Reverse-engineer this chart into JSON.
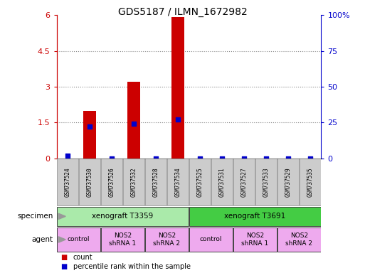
{
  "title": "GDS5187 / ILMN_1672982",
  "samples": [
    "GSM737524",
    "GSM737530",
    "GSM737526",
    "GSM737532",
    "GSM737528",
    "GSM737534",
    "GSM737525",
    "GSM737531",
    "GSM737527",
    "GSM737533",
    "GSM737529",
    "GSM737535"
  ],
  "count_values": [
    0.0,
    2.0,
    0.0,
    3.2,
    0.0,
    5.9,
    0.0,
    0.0,
    0.0,
    0.0,
    0.0,
    0.0
  ],
  "percentile_values": [
    2.0,
    22.0,
    0.0,
    24.0,
    0.0,
    27.0,
    0.0,
    0.0,
    0.0,
    0.0,
    0.0,
    0.0
  ],
  "bar_color": "#cc0000",
  "dot_color": "#0000cc",
  "ylim_left": [
    0,
    6
  ],
  "ylim_right": [
    0,
    100
  ],
  "yticks_left": [
    0,
    1.5,
    3,
    4.5,
    6
  ],
  "yticks_right": [
    0,
    25,
    50,
    75,
    100
  ],
  "ytick_labels_left": [
    "0",
    "1.5",
    "3",
    "4.5",
    "6"
  ],
  "ytick_labels_right": [
    "0",
    "25",
    "50",
    "75",
    "100%"
  ],
  "specimen_groups": [
    {
      "label": "xenograft T3359",
      "start": 0,
      "end": 6,
      "color": "#aaeaaa"
    },
    {
      "label": "xenograft T3691",
      "start": 6,
      "end": 12,
      "color": "#44cc44"
    }
  ],
  "agent_groups": [
    {
      "label": "control",
      "start": 0,
      "end": 2,
      "color": "#eeaaee"
    },
    {
      "label": "NOS2\nshRNA 1",
      "start": 2,
      "end": 4,
      "color": "#eeaaee"
    },
    {
      "label": "NOS2\nshRNA 2",
      "start": 4,
      "end": 6,
      "color": "#eeaaee"
    },
    {
      "label": "control",
      "start": 6,
      "end": 8,
      "color": "#eeaaee"
    },
    {
      "label": "NOS2\nshRNA 1",
      "start": 8,
      "end": 10,
      "color": "#eeaaee"
    },
    {
      "label": "NOS2\nshRNA 2",
      "start": 10,
      "end": 12,
      "color": "#eeaaee"
    }
  ],
  "legend_count_label": "count",
  "legend_pct_label": "percentile rank within the sample",
  "left_axis_color": "#cc0000",
  "right_axis_color": "#0000cc",
  "bg_color": "#ffffff",
  "grid_color": "#888888",
  "bar_width": 0.55,
  "specimen_row_label": "specimen",
  "agent_row_label": "agent",
  "label_box_color": "#cccccc",
  "label_box_edge": "#999999"
}
